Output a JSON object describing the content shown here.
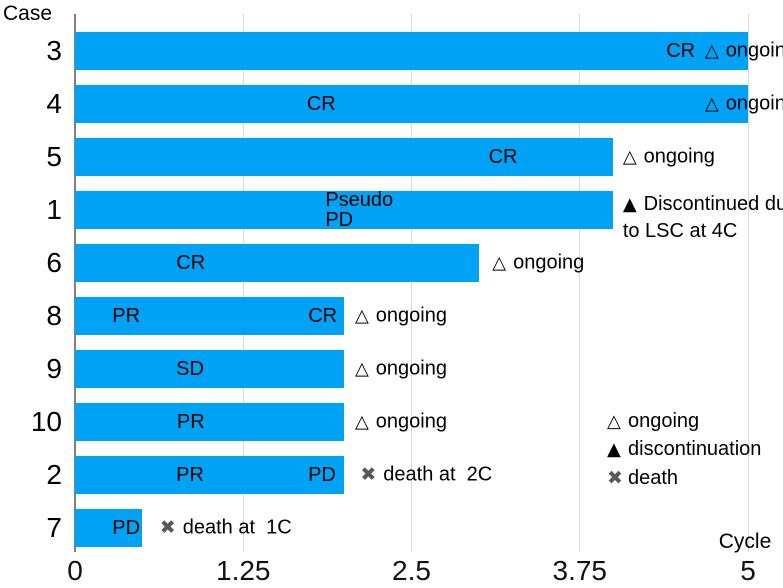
{
  "chart_data": {
    "type": "bar",
    "variant": "swimmer-plot",
    "orientation": "horizontal",
    "title": "",
    "xlabel": "Cycle",
    "ylabel": "Case",
    "xlim": [
      0,
      5
    ],
    "grid": true,
    "bar_color": "#00A2F5",
    "x_ticks": [
      {
        "label": "0",
        "value": 0
      },
      {
        "label": "1.25",
        "value": 1.25
      },
      {
        "label": "2.5",
        "value": 2.5
      },
      {
        "label": "3.75",
        "value": 3.75
      },
      {
        "label": "5",
        "value": 5
      }
    ],
    "categories": [
      "3",
      "4",
      "5",
      "1",
      "6",
      "8",
      "9",
      "10",
      "2",
      "7"
    ],
    "values": [
      5,
      5,
      4,
      4,
      3,
      2,
      2,
      2,
      2,
      0.5
    ],
    "cases": [
      {
        "case": "3",
        "cycles": 5,
        "bar_labels": [
          {
            "lines": [
              "CR"
            ],
            "x": 4.5,
            "align": "center"
          }
        ],
        "annotation": {
          "marker": "ongoing",
          "lines": [
            "ongoing"
          ],
          "x": 4.68
        }
      },
      {
        "case": "4",
        "cycles": 5,
        "bar_labels": [
          {
            "lines": [
              "CR"
            ],
            "x": 1.83,
            "align": "center"
          }
        ],
        "annotation": {
          "marker": "ongoing",
          "lines": [
            "ongoing"
          ],
          "x": 4.68
        }
      },
      {
        "case": "5",
        "cycles": 4,
        "bar_labels": [
          {
            "lines": [
              "CR"
            ],
            "x": 3.18,
            "align": "center"
          }
        ],
        "annotation": {
          "marker": "ongoing",
          "lines": [
            "ongoing"
          ],
          "x": 4.07
        }
      },
      {
        "case": "1",
        "cycles": 4,
        "bar_labels": [
          {
            "lines": [
              "Pseudo",
              "PD"
            ],
            "x": 1.86,
            "align": "left"
          }
        ],
        "annotation": {
          "marker": "discontinuation",
          "lines": [
            "Discontinued due",
            "to LSC at 4C"
          ],
          "x": 4.07,
          "dy": 8
        }
      },
      {
        "case": "6",
        "cycles": 3,
        "bar_labels": [
          {
            "lines": [
              "CR"
            ],
            "x": 0.86,
            "align": "center"
          }
        ],
        "annotation": {
          "marker": "ongoing",
          "lines": [
            "ongoing"
          ],
          "x": 3.1
        }
      },
      {
        "case": "8",
        "cycles": 2,
        "bar_labels": [
          {
            "lines": [
              "PR"
            ],
            "x": 0.38,
            "align": "center"
          },
          {
            "lines": [
              "CR"
            ],
            "x": 1.84,
            "align": "center"
          }
        ],
        "annotation": {
          "marker": "ongoing",
          "lines": [
            "ongoing"
          ],
          "x": 2.08
        }
      },
      {
        "case": "9",
        "cycles": 2,
        "bar_labels": [
          {
            "lines": [
              "SD"
            ],
            "x": 0.855,
            "align": "center"
          }
        ],
        "annotation": {
          "marker": "ongoing",
          "lines": [
            "ongoing"
          ],
          "x": 2.08
        }
      },
      {
        "case": "10",
        "cycles": 2,
        "bar_labels": [
          {
            "lines": [
              "PR"
            ],
            "x": 0.86,
            "align": "center"
          }
        ],
        "annotation": {
          "marker": "ongoing",
          "lines": [
            "ongoing"
          ],
          "x": 2.08
        }
      },
      {
        "case": "2",
        "cycles": 2,
        "bar_labels": [
          {
            "lines": [
              "PR"
            ],
            "x": 0.855,
            "align": "center"
          },
          {
            "lines": [
              "PD"
            ],
            "x": 1.835,
            "align": "center"
          }
        ],
        "annotation": {
          "marker": "death",
          "lines": [
            "death at  2C"
          ],
          "x": 2.12
        }
      },
      {
        "case": "7",
        "cycles": 0.5,
        "bar_labels": [
          {
            "lines": [
              "PD"
            ],
            "x": 0.38,
            "align": "center"
          }
        ],
        "annotation": {
          "marker": "death",
          "lines": [
            "death at  1C"
          ],
          "x": 0.63
        }
      }
    ]
  },
  "markers": {
    "ongoing": "△",
    "discontinuation": "▲",
    "death": "✖"
  },
  "legend": {
    "items": [
      {
        "marker": "ongoing",
        "symbol": "△",
        "label": "ongoing"
      },
      {
        "marker": "discontinuation",
        "symbol": "▲",
        "label": "discontinuation"
      },
      {
        "marker": "death",
        "symbol": "✖",
        "label": "death"
      }
    ]
  },
  "colors": {
    "bar": "#00A2F5",
    "grid": "#D9D9D9",
    "axis_line": "#808080",
    "text": "#000000",
    "death_marker": "#595959"
  }
}
